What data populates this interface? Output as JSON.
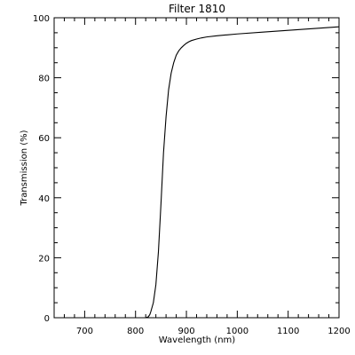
{
  "chart_data": {
    "type": "line",
    "title": "Filter 1810",
    "xlabel": "Wavelength (nm)",
    "ylabel": "Transmission (%)",
    "xlim": [
      640,
      1200
    ],
    "ylim": [
      0,
      100
    ],
    "xticks": [
      700,
      800,
      900,
      1000,
      1100,
      1200
    ],
    "yticks": [
      0,
      20,
      40,
      60,
      80,
      100
    ],
    "grid": false,
    "series": [
      {
        "color": "#000000",
        "x": [
          820,
          825,
          828,
          830,
          835,
          840,
          845,
          850,
          855,
          860,
          865,
          870,
          875,
          880,
          885,
          890,
          895,
          900,
          905,
          910,
          920,
          930,
          940,
          960,
          980,
          1000,
          1050,
          1100,
          1150,
          1200
        ],
        "y": [
          0,
          0.3,
          1,
          2,
          5,
          11,
          22,
          38,
          55,
          67,
          76,
          81.5,
          85,
          87.5,
          89,
          90,
          90.8,
          91.5,
          92,
          92.4,
          92.9,
          93.3,
          93.6,
          94,
          94.3,
          94.6,
          95.2,
          95.8,
          96.4,
          97
        ]
      }
    ]
  }
}
